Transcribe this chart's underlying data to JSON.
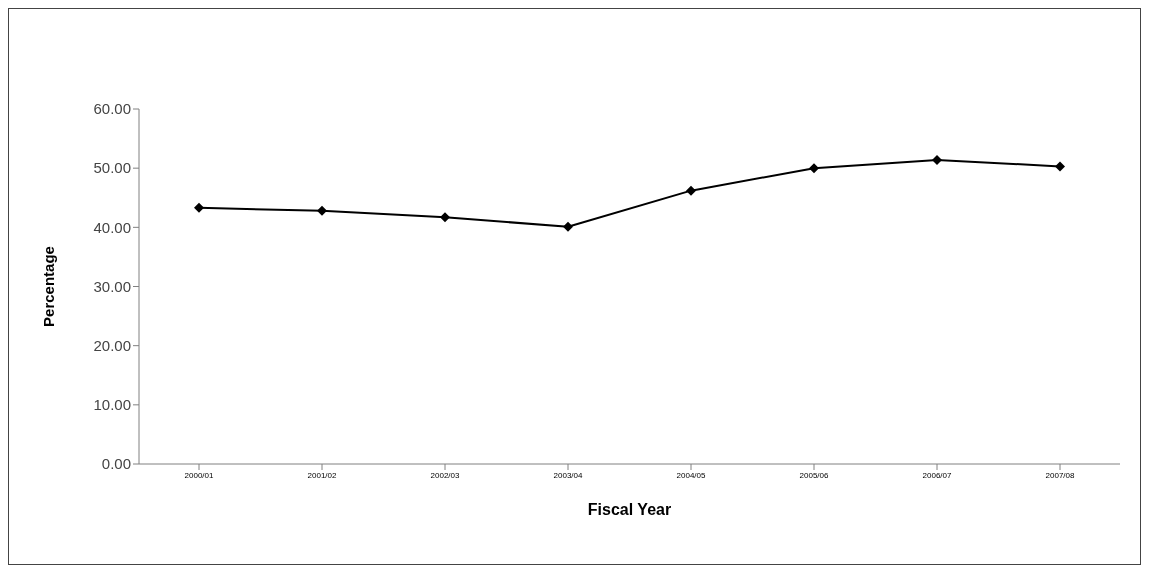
{
  "chart_data": {
    "type": "line",
    "xlabel": "Fiscal Year",
    "ylabel": "Percentage",
    "categories": [
      "2000/01",
      "2001/02",
      "2002/03",
      "2003/04",
      "2004/05",
      "2005/06",
      "2006/07",
      "2007/08"
    ],
    "series": [
      {
        "color": "#000000",
        "values": [
          43.3,
          42.8,
          41.7,
          40.1,
          46.2,
          50.0,
          51.4,
          50.3
        ]
      }
    ],
    "ylim": [
      0,
      60
    ],
    "yticks": [
      {
        "value": 0,
        "label": "0.00"
      },
      {
        "value": 10,
        "label": "10.00"
      },
      {
        "value": 20,
        "label": "20.00"
      },
      {
        "value": 30,
        "label": "30.00"
      },
      {
        "value": 40,
        "label": "40.00"
      },
      {
        "value": 50,
        "label": "50.00"
      },
      {
        "value": 60,
        "label": "60.00"
      }
    ],
    "grid": false,
    "legend": false,
    "marker": "diamond",
    "line_style": "solid"
  }
}
